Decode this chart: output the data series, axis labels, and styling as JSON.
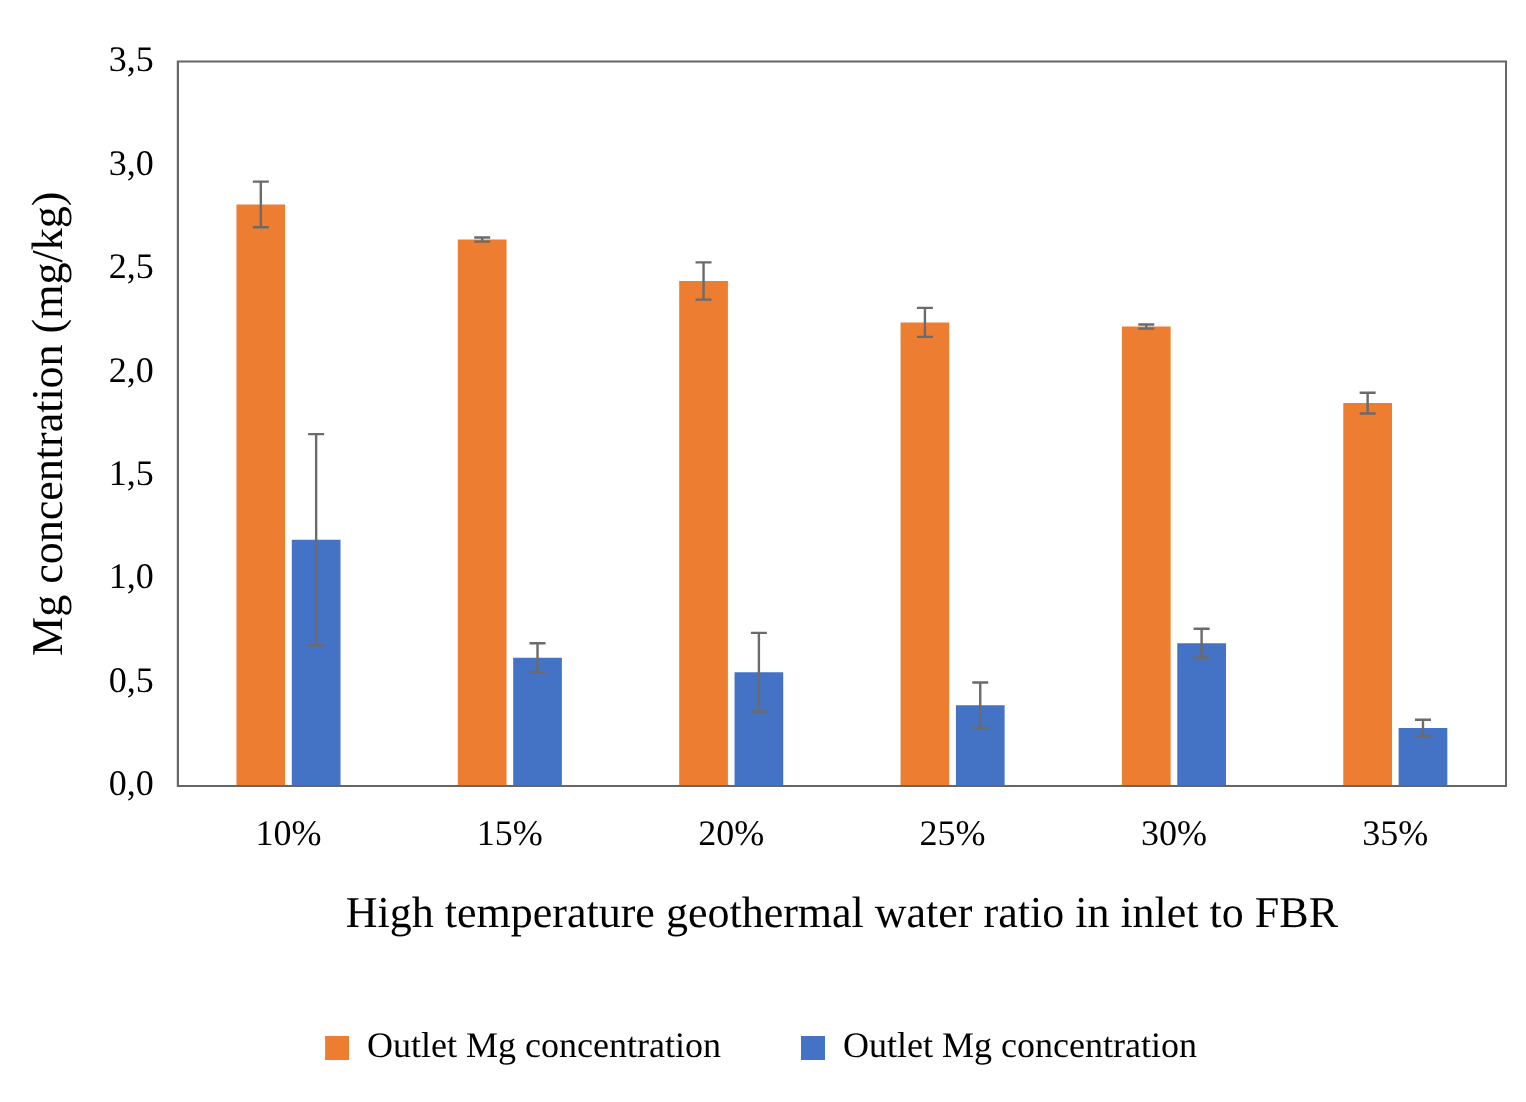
{
  "chart_data": {
    "type": "bar",
    "xlabel": "High temperature geothermal water ratio in inlet to FBR",
    "ylabel": "Mg concentration (mg/kg)",
    "categories": [
      "10%",
      "15%",
      "20%",
      "25%",
      "30%",
      "35%"
    ],
    "series": [
      {
        "name": "Outlet Mg concentration",
        "color": "#ed7d31",
        "values": [
          2.81,
          2.64,
          2.44,
          2.24,
          2.22,
          1.85
        ],
        "errors": [
          0.11,
          0.01,
          0.09,
          0.07,
          0.01,
          0.05
        ]
      },
      {
        "name": "Outlet Mg concentration",
        "color": "#4472c4",
        "values": [
          1.19,
          0.62,
          0.55,
          0.39,
          0.69,
          0.28
        ],
        "errors": [
          0.51,
          0.07,
          0.19,
          0.11,
          0.07,
          0.04
        ]
      }
    ],
    "ylim": [
      0,
      3.5
    ],
    "yticks": [
      {
        "value": 0,
        "label": "0,0"
      },
      {
        "value": 0.5,
        "label": "0,5"
      },
      {
        "value": 1,
        "label": "1,0"
      },
      {
        "value": 1.5,
        "label": "1,5"
      },
      {
        "value": 2,
        "label": "2,0"
      },
      {
        "value": 2.5,
        "label": "2,5"
      },
      {
        "value": 3,
        "label": "3,0"
      },
      {
        "value": 3.5,
        "label": "3,5"
      }
    ],
    "grid": false,
    "legend": "bottom"
  }
}
